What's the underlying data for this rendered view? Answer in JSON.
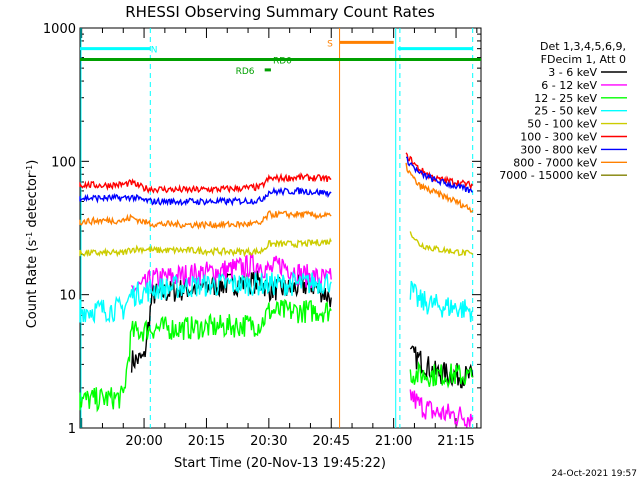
{
  "chart_data": {
    "type": "line",
    "title": "RHESSI Observing Summary Count Rates",
    "xlabel": "Start Time (20-Nov-13 19:45:22)",
    "ylabel_main": "Count Rate (s",
    "ylabel_sup1": "-1",
    "ylabel_mid": " detector",
    "ylabel_sup2": "-1",
    "ylabel_end": ")",
    "xlim_minutes": [
      -15.4,
      36
    ],
    "x_ref_time": "20:00",
    "x_ticks": [
      {
        "label": "20:00",
        "min": 0
      },
      {
        "label": "20:15",
        "min": 15
      },
      {
        "label": "20:30",
        "min": 30
      },
      {
        "label": "20:45",
        "min": 45
      },
      {
        "label": "21:00",
        "min": 60
      },
      {
        "label": "21:15",
        "min": 75
      }
    ],
    "y_scale": "log",
    "ylim": [
      1,
      1000
    ],
    "y_ticks": [
      {
        "label": "1",
        "v": 1
      },
      {
        "label": "10",
        "v": 10
      },
      {
        "label": "100",
        "v": 100
      },
      {
        "label": "1000",
        "v": 1000
      }
    ],
    "legend_title_lines": [
      "Det 1,3,4,5,6,9,",
      "FDecim 1, Att 0"
    ],
    "legend_placement": "right",
    "series": [
      {
        "name": "3 - 6 keV",
        "color": "#000000",
        "segments": [
          [
            [
              -3,
              3.2
            ],
            [
              0,
              3.3
            ],
            [
              2,
              10
            ],
            [
              10,
              11
            ],
            [
              20,
              12
            ],
            [
              28,
              12.5
            ],
            [
              30,
              11
            ],
            [
              35,
              11
            ],
            [
              40,
              12
            ],
            [
              44,
              10
            ],
            [
              45,
              9.5
            ]
          ],
          [
            [
              64,
              3.5
            ],
            [
              66,
              3.3
            ],
            [
              70,
              2.6
            ],
            [
              75,
              2.5
            ],
            [
              79,
              2.4
            ]
          ]
        ]
      },
      {
        "name": "6 - 12 keV",
        "color": "#ff00ff",
        "segments": [
          [
            [
              -3,
              11
            ],
            [
              0,
              11.5
            ],
            [
              2,
              13
            ],
            [
              10,
              14
            ],
            [
              18,
              15
            ],
            [
              24,
              16
            ],
            [
              28,
              17
            ],
            [
              30,
              15
            ],
            [
              33,
              17
            ],
            [
              38,
              14
            ],
            [
              44,
              13
            ],
            [
              45,
              13
            ]
          ],
          [
            [
              64,
              1.8
            ],
            [
              66,
              1.5
            ],
            [
              70,
              1.3
            ],
            [
              75,
              1.25
            ],
            [
              79,
              1.2
            ]
          ]
        ]
      },
      {
        "name": "12 - 25 keV",
        "color": "#00ff00",
        "segments": [
          [
            [
              -17,
              1.6
            ],
            [
              -5,
              1.7
            ],
            [
              -3,
              5.2
            ],
            [
              0,
              5.4
            ],
            [
              2,
              5.6
            ],
            [
              10,
              5.6
            ],
            [
              20,
              5.8
            ],
            [
              28,
              6
            ],
            [
              30,
              7.5
            ],
            [
              38,
              7.5
            ],
            [
              44,
              7.6
            ],
            [
              45,
              7.6
            ]
          ],
          [
            [
              64,
              2.6
            ],
            [
              66,
              2.5
            ],
            [
              70,
              2.5
            ],
            [
              75,
              2.5
            ],
            [
              79,
              2.4
            ]
          ]
        ]
      },
      {
        "name": "25 - 50 keV",
        "color": "#00ffff",
        "segments": [
          [
            [
              -17,
              7.6
            ],
            [
              -5,
              7.8
            ],
            [
              -3,
              10
            ],
            [
              0,
              10.5
            ],
            [
              2,
              11
            ],
            [
              10,
              11.5
            ],
            [
              20,
              12
            ],
            [
              28,
              12
            ],
            [
              30,
              12
            ],
            [
              38,
              12
            ],
            [
              44,
              12.5
            ],
            [
              45,
              12.5
            ]
          ],
          [
            [
              64,
              11
            ],
            [
              66,
              9
            ],
            [
              70,
              8.3
            ],
            [
              75,
              8
            ],
            [
              79,
              7.6
            ]
          ]
        ]
      },
      {
        "name": "50 - 100 keV",
        "color": "#cccc00",
        "segments": [
          [
            [
              -17,
              20.5
            ],
            [
              -5,
              20.5
            ],
            [
              -3,
              22
            ],
            [
              0,
              22
            ],
            [
              2,
              21.5
            ],
            [
              10,
              21.5
            ],
            [
              20,
              21
            ],
            [
              28,
              21
            ],
            [
              30,
              24
            ],
            [
              38,
              24
            ],
            [
              44,
              25
            ],
            [
              45,
              25
            ]
          ],
          [
            [
              64,
              30
            ],
            [
              66,
              24
            ],
            [
              70,
              22
            ],
            [
              75,
              21
            ],
            [
              79,
              20
            ]
          ]
        ]
      },
      {
        "name": "100 - 300 keV",
        "color": "#ff0000",
        "segments": [
          [
            [
              -17,
              67
            ],
            [
              -10,
              66
            ],
            [
              -5,
              67
            ],
            [
              -3,
              69
            ],
            [
              0,
              63
            ],
            [
              2,
              62
            ],
            [
              10,
              61
            ],
            [
              20,
              62
            ],
            [
              28,
              64
            ],
            [
              30,
              74
            ],
            [
              38,
              76
            ],
            [
              44,
              74
            ],
            [
              45,
              74
            ]
          ],
          [
            [
              63,
              110
            ],
            [
              64,
              104
            ],
            [
              66,
              88
            ],
            [
              70,
              74
            ],
            [
              75,
              70
            ],
            [
              79,
              66
            ]
          ]
        ]
      },
      {
        "name": "300 - 800 keV",
        "color": "#0000ff",
        "segments": [
          [
            [
              -17,
              53
            ],
            [
              -10,
              53
            ],
            [
              -5,
              53
            ],
            [
              -3,
              54
            ],
            [
              0,
              51
            ],
            [
              2,
              50
            ],
            [
              10,
              50
            ],
            [
              20,
              50
            ],
            [
              28,
              51
            ],
            [
              30,
              59
            ],
            [
              38,
              60
            ],
            [
              44,
              58
            ],
            [
              45,
              58
            ]
          ],
          [
            [
              63,
              103
            ],
            [
              64,
              97
            ],
            [
              66,
              82
            ],
            [
              70,
              72
            ],
            [
              75,
              65
            ],
            [
              79,
              59
            ]
          ]
        ]
      },
      {
        "name": "800 - 7000 keV",
        "color": "#ff8000",
        "segments": [
          [
            [
              -17,
              35
            ],
            [
              -10,
              36
            ],
            [
              -5,
              36
            ],
            [
              -3,
              38
            ],
            [
              0,
              35
            ],
            [
              2,
              34
            ],
            [
              10,
              33.5
            ],
            [
              20,
              33.5
            ],
            [
              28,
              34
            ],
            [
              30,
              40
            ],
            [
              38,
              40
            ],
            [
              44,
              39
            ],
            [
              45,
              39
            ]
          ],
          [
            [
              63,
              92
            ],
            [
              64,
              80
            ],
            [
              66,
              66
            ],
            [
              70,
              58
            ],
            [
              75,
              50
            ],
            [
              79,
              43
            ]
          ]
        ]
      },
      {
        "name": "7000 - 15000 keV",
        "color": "#808000",
        "segments": []
      }
    ],
    "state_bars": [
      {
        "label": "N",
        "color": "#00ffff",
        "y": 700,
        "ranges": [
          [
            -17,
            1.5
          ],
          [
            61,
            79
          ]
        ],
        "label_min": 1.6
      },
      {
        "label": "S",
        "color": "#ff8000",
        "y": 780,
        "ranges": [
          [
            47,
            60
          ]
        ],
        "label_min": 44
      },
      {
        "label": "RD0",
        "color": "#00a000",
        "y": 580,
        "ranges": [
          [
            -17,
            81
          ]
        ],
        "label_min": 31
      },
      {
        "label": "RD6",
        "color": "#00a000",
        "y": 485,
        "ranges": [
          [
            29,
            30.5
          ]
        ],
        "label_min": 22
      }
    ],
    "vlines": [
      {
        "min": 1.5,
        "color": "#00ffff",
        "style": "dash"
      },
      {
        "min": 47,
        "color": "#ff8000",
        "style": "solid"
      },
      {
        "min": 60.5,
        "color": "#00ffff",
        "style": "solid"
      },
      {
        "min": 61.5,
        "color": "#00ffff",
        "style": "dash"
      },
      {
        "min": 79,
        "color": "#00ffff",
        "style": "dash"
      }
    ],
    "left_marker_color": "#00ffff",
    "footer_date": "24-Oct-2021 19:57"
  }
}
